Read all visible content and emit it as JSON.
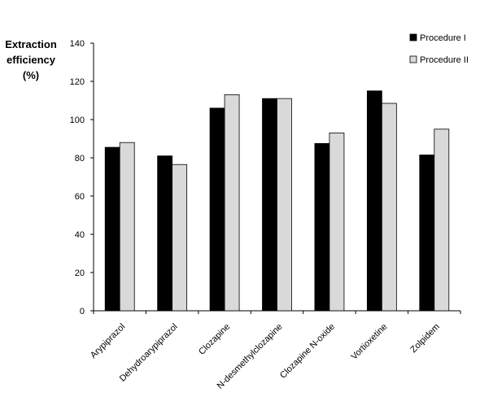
{
  "chart_data": {
    "type": "bar",
    "title": "",
    "ylabel_lines": [
      "Extraction",
      "efficiency",
      "(%)"
    ],
    "xlabel": "",
    "ylim": [
      0,
      140
    ],
    "yticks": [
      0,
      20,
      40,
      60,
      80,
      100,
      120,
      140
    ],
    "categories": [
      "Arypiprazol",
      "Dehydroarypiprazol",
      "Clozapine",
      "N-desmethylclozapine",
      "Clozapine N-oxide",
      "Vortioxetine",
      "Zolpidem"
    ],
    "series": [
      {
        "name": "Procedure I",
        "color": "#000000",
        "values": [
          85.5,
          81,
          106,
          111,
          87.5,
          115,
          81.5
        ]
      },
      {
        "name": "Procedure II",
        "color": "#d9d9d9",
        "values": [
          88,
          76.5,
          113,
          111,
          93,
          108.5,
          95
        ]
      }
    ],
    "legend_position": "top-right",
    "grid": false
  }
}
